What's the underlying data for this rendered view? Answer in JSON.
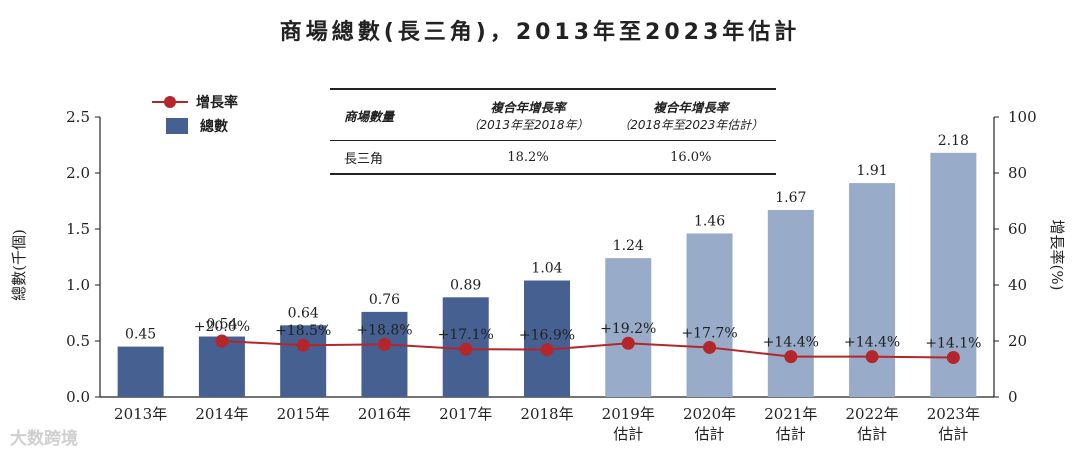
{
  "title": "商場總數(長三角)，2013年至2023年估計",
  "legend": {
    "line_label": "增長率",
    "bar_label": "總數"
  },
  "cagr_table": {
    "headers": [
      {
        "main": "商場數量",
        "sub": ""
      },
      {
        "main": "複合年增長率",
        "sub": "（2013年至2018年）"
      },
      {
        "main": "複合年增長率",
        "sub": "（2018年至2023年估計）"
      }
    ],
    "row": [
      "長三角",
      "18.2%",
      "16.0%"
    ]
  },
  "watermark": "大数跨境",
  "colors": {
    "actual_bar": "#456091",
    "forecast_bar": "#98abc8",
    "growth_line": "#b5262b"
  },
  "chart_data": {
    "type": "bar",
    "title": "商場總數(長三角)，2013年至2023年估計",
    "categories": [
      "2013年",
      "2014年",
      "2015年",
      "2016年",
      "2017年",
      "2018年",
      "2019年\n估計",
      "2020年\n估計",
      "2021年\n估計",
      "2022年\n估計",
      "2023年\n估計"
    ],
    "forecast": [
      false,
      false,
      false,
      false,
      false,
      false,
      true,
      true,
      true,
      true,
      true
    ],
    "series": [
      {
        "name": "總數",
        "type": "bar",
        "axis": "left",
        "values": [
          0.45,
          0.54,
          0.64,
          0.76,
          0.89,
          1.04,
          1.24,
          1.46,
          1.67,
          1.91,
          2.18
        ],
        "labels": [
          "0.45",
          "0.54",
          "0.64",
          "0.76",
          "0.89",
          "1.04",
          "1.24",
          "1.46",
          "1.67",
          "1.91",
          "2.18"
        ]
      },
      {
        "name": "增長率",
        "type": "line",
        "axis": "right",
        "values": [
          null,
          20.0,
          18.5,
          18.8,
          17.1,
          16.9,
          19.2,
          17.7,
          14.4,
          14.4,
          14.1
        ],
        "labels": [
          null,
          "+20.0%",
          "+18.5%",
          "+18.8%",
          "+17.1%",
          "+16.9%",
          "+19.2%",
          "+17.7%",
          "+14.4%",
          "+14.4%",
          "+14.1%"
        ]
      }
    ],
    "ylabel": "總數(千個)",
    "ylabel_right": "增長率(%)",
    "ylim": [
      0,
      2.5
    ],
    "yticks": [
      "0.0",
      "0.5",
      "1.0",
      "1.5",
      "2.0",
      "2.5"
    ],
    "ylim_right": [
      0,
      100
    ],
    "yticks_right": [
      "0",
      "20",
      "40",
      "60",
      "80",
      "100"
    ],
    "grid": false
  }
}
